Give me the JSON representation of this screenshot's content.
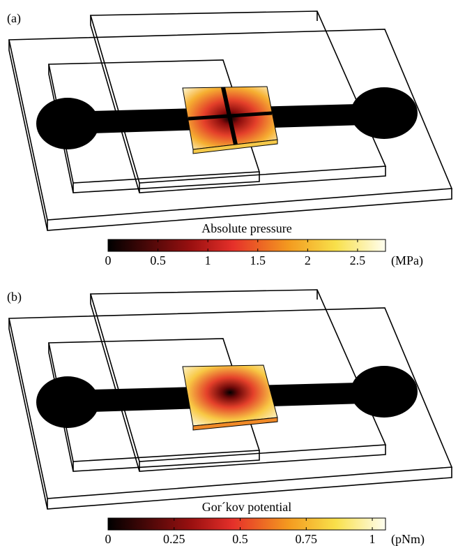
{
  "panels": [
    {
      "label": "(a)",
      "colorbar": {
        "title": "Absolute pressure",
        "unit": "(MPa)",
        "lim": [
          0,
          2.78
        ],
        "ticks": [
          0,
          0.5,
          1,
          1.5,
          2,
          2.5
        ]
      }
    },
    {
      "label": "(b)",
      "colorbar": {
        "title": "Gor´kov potential",
        "unit": "(pNm)",
        "lim": [
          0,
          1.05
        ],
        "ticks": [
          0,
          0.25,
          0.5,
          0.75,
          1
        ]
      }
    }
  ]
}
